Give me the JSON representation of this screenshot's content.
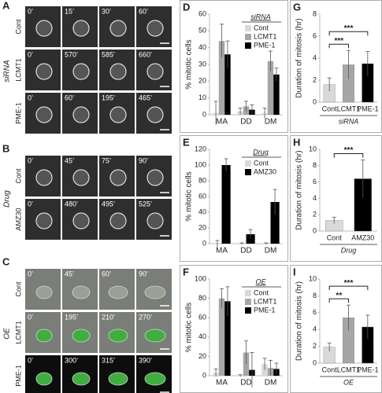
{
  "microscopy": [
    {
      "panel_label": "A",
      "group": "siRNA",
      "rows": [
        {
          "label": "Cont",
          "times": [
            "0’",
            "15’",
            "30’",
            "60’"
          ]
        },
        {
          "label": "LCMT1",
          "times": [
            "0’",
            "570’",
            "585’",
            "660’"
          ]
        },
        {
          "label": "PME-1",
          "times": [
            "0’",
            "60’",
            "195’",
            "465’"
          ]
        }
      ]
    },
    {
      "panel_label": "B",
      "group": "Drug",
      "rows": [
        {
          "label": "Cont",
          "times": [
            "0’",
            "45’",
            "75’",
            "90’"
          ]
        },
        {
          "label": "AMZ30",
          "times": [
            "0’",
            "480’",
            "495’",
            "525’"
          ]
        }
      ]
    },
    {
      "panel_label": "C",
      "group": "OE",
      "rows": [
        {
          "label": "Cont",
          "times": [
            "0’",
            "45’",
            "60’",
            "90’"
          ]
        },
        {
          "label": "LCMT1",
          "times": [
            "0’",
            "195’",
            "210’",
            "270’"
          ]
        },
        {
          "label": "PME-1",
          "times": [
            "0’",
            "300’",
            "315’",
            "390’"
          ]
        }
      ]
    }
  ],
  "chart_data": [
    {
      "type": "bar",
      "panel_label": "D",
      "ylabel": "% mitotic cells",
      "legend_title": "siRNA",
      "legend": "upper right",
      "grid": false,
      "categories": [
        "MA",
        "DD",
        "DM"
      ],
      "ylim": [
        0,
        60
      ],
      "yticks": [
        0,
        10,
        20,
        30,
        40,
        50,
        60
      ],
      "series": [
        {
          "name": "Cont",
          "color": "#d9d9d9",
          "values": [
            1,
            2,
            1
          ],
          "errors": [
            7,
            2,
            3
          ]
        },
        {
          "name": "LCMT1",
          "color": "#a6a6a6",
          "values": [
            44,
            5,
            32
          ],
          "errors": [
            10,
            3,
            6
          ]
        },
        {
          "name": "PME-1",
          "color": "#000000",
          "values": [
            36,
            3,
            24
          ],
          "errors": [
            8,
            3,
            4
          ]
        }
      ]
    },
    {
      "type": "bar",
      "panel_label": "E",
      "ylabel": "% mitotic cells",
      "legend_title": "Drug",
      "legend": "upper right",
      "grid": false,
      "categories": [
        "MA",
        "DD",
        "DM"
      ],
      "ylim": [
        0,
        120
      ],
      "yticks": [
        0,
        20,
        40,
        60,
        80,
        100,
        120
      ],
      "series": [
        {
          "name": "Cont",
          "color": "#d9d9d9",
          "values": [
            0,
            0,
            0
          ],
          "errors": [
            4,
            1,
            1
          ]
        },
        {
          "name": "AMZ30",
          "color": "#000000",
          "values": [
            100,
            12,
            53
          ],
          "errors": [
            8,
            6,
            16
          ]
        }
      ]
    },
    {
      "type": "bar",
      "panel_label": "F",
      "ylabel": "% mitotic cells",
      "legend_title": "OE",
      "legend": "upper right",
      "grid": false,
      "categories": [
        "MA",
        "DD",
        "DM"
      ],
      "ylim": [
        0,
        100
      ],
      "yticks": [
        0,
        20,
        40,
        60,
        80,
        100
      ],
      "series": [
        {
          "name": "Cont",
          "color": "#d9d9d9",
          "values": [
            3,
            0,
            12
          ],
          "errors": [
            4,
            1,
            6
          ]
        },
        {
          "name": "LCMT1",
          "color": "#a6a6a6",
          "values": [
            80,
            24,
            8
          ],
          "errors": [
            10,
            12,
            8
          ]
        },
        {
          "name": "PME-1",
          "color": "#000000",
          "values": [
            77,
            6,
            7
          ],
          "errors": [
            15,
            18,
            6
          ]
        }
      ]
    },
    {
      "type": "bar",
      "panel_label": "G",
      "ylabel": "Duration of mitosis (hr)",
      "xlabel": "siRNA",
      "grid": false,
      "categories": [
        "Cont",
        "LCMT1",
        "PME-1"
      ],
      "values": [
        1.6,
        3.4,
        3.5
      ],
      "errors": [
        0.6,
        1.3,
        1.1
      ],
      "colors": [
        "#d9d9d9",
        "#a6a6a6",
        "#000000"
      ],
      "ylim": [
        0,
        8
      ],
      "yticks": [
        0,
        2,
        4,
        6,
        8
      ],
      "annotations": [
        {
          "text": "***",
          "pair": [
            "Cont",
            "LCMT1"
          ]
        },
        {
          "text": "***",
          "pair": [
            "Cont",
            "PME-1"
          ]
        }
      ]
    },
    {
      "type": "bar",
      "panel_label": "H",
      "ylabel": "Duration of mitosis (hr)",
      "xlabel": "Drug",
      "grid": false,
      "categories": [
        "Cont",
        "AMZ30"
      ],
      "values": [
        1.3,
        6.4
      ],
      "errors": [
        0.4,
        2.3
      ],
      "colors": [
        "#d9d9d9",
        "#000000"
      ],
      "ylim": [
        0,
        10
      ],
      "yticks": [
        0,
        2,
        4,
        6,
        8,
        10
      ],
      "annotations": [
        {
          "text": "***",
          "pair": [
            "Cont",
            "AMZ30"
          ]
        }
      ]
    },
    {
      "type": "bar",
      "panel_label": "I",
      "ylabel": "Duration of mitosis (hr)",
      "xlabel": "OE",
      "grid": false,
      "categories": [
        "Cont",
        "LCMT1",
        "PME-1"
      ],
      "values": [
        1.9,
        5.4,
        4.3
      ],
      "errors": [
        0.5,
        1.5,
        1.4
      ],
      "colors": [
        "#d9d9d9",
        "#a6a6a6",
        "#000000"
      ],
      "ylim": [
        0,
        10
      ],
      "yticks": [
        0,
        2,
        4,
        6,
        8,
        10
      ],
      "annotations": [
        {
          "text": "**",
          "pair": [
            "Cont",
            "LCMT1"
          ]
        },
        {
          "text": "***",
          "pair": [
            "Cont",
            "PME-1"
          ]
        }
      ]
    }
  ]
}
